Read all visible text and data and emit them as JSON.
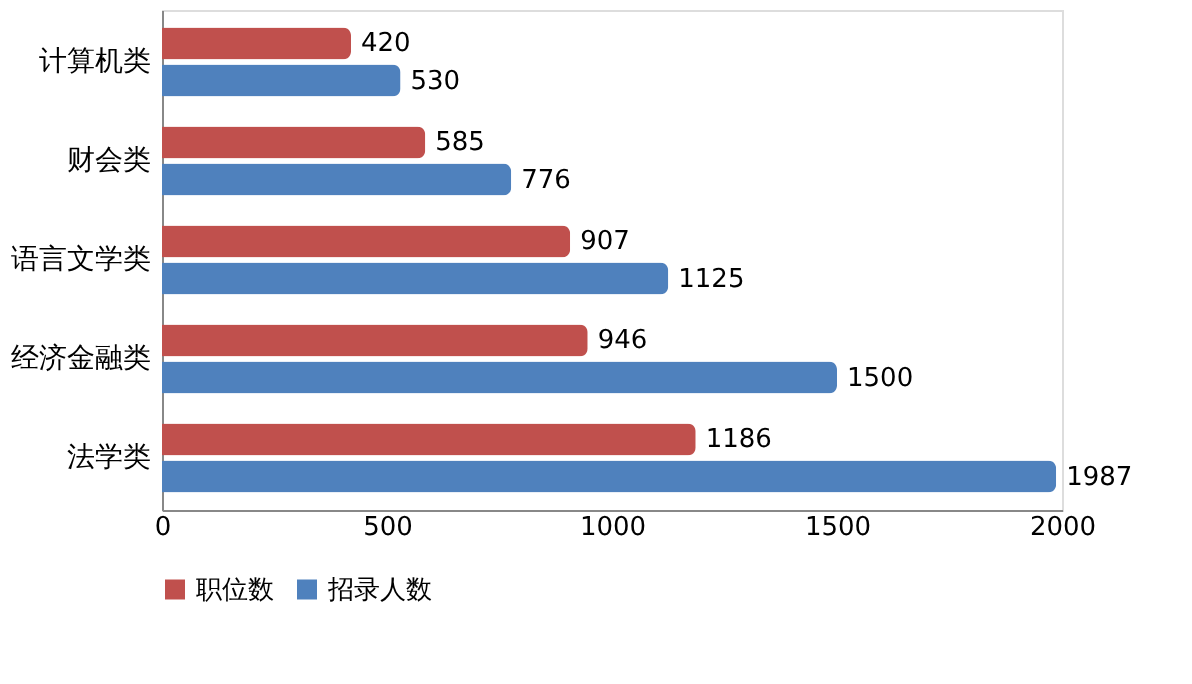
{
  "chart_data": {
    "type": "bar",
    "orientation": "horizontal",
    "categories": [
      "计算机类",
      "财会类",
      "语言文学类",
      "经济金融类",
      "法学类"
    ],
    "series": [
      {
        "name": "职位数",
        "color": "#c0504d",
        "values": [
          420,
          585,
          907,
          946,
          1186
        ]
      },
      {
        "name": "招录人数",
        "color": "#4f81bd",
        "values": [
          530,
          776,
          1125,
          1500,
          1987
        ]
      }
    ],
    "xlim": [
      0,
      2000
    ],
    "xticks": [
      0,
      500,
      1000,
      1500,
      2000
    ],
    "data_labels": true,
    "grid": false,
    "legend": "bottom"
  }
}
